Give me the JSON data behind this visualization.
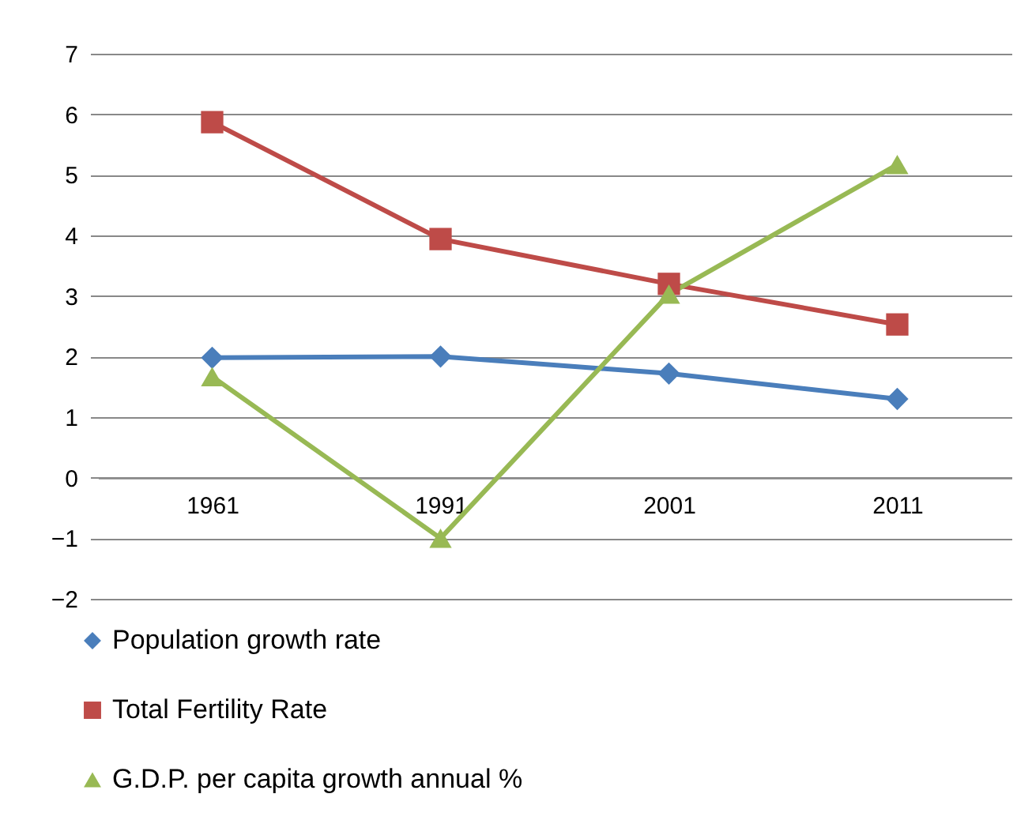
{
  "chart_data": {
    "type": "line",
    "categories": [
      "1961",
      "1991",
      "2001",
      "2011"
    ],
    "series": [
      {
        "name": "Population growth rate",
        "color": "#4a7ebb",
        "marker": "diamond",
        "values": [
          1.98,
          2.0,
          1.72,
          1.3
        ]
      },
      {
        "name": "Total Fertility Rate",
        "color": "#be4b48",
        "marker": "square",
        "values": [
          5.87,
          3.94,
          3.2,
          2.53
        ]
      },
      {
        "name": "G.D.P. per capita growth annual %",
        "color": "#98b954",
        "marker": "triangle",
        "values": [
          1.67,
          -1.0,
          3.03,
          5.17
        ]
      }
    ],
    "ylim": [
      -2,
      7
    ],
    "yticks": [
      -2,
      -1,
      0,
      1,
      2,
      3,
      4,
      5,
      6,
      7
    ],
    "grid": "y",
    "legend": "bottom",
    "line_style": "solid"
  }
}
